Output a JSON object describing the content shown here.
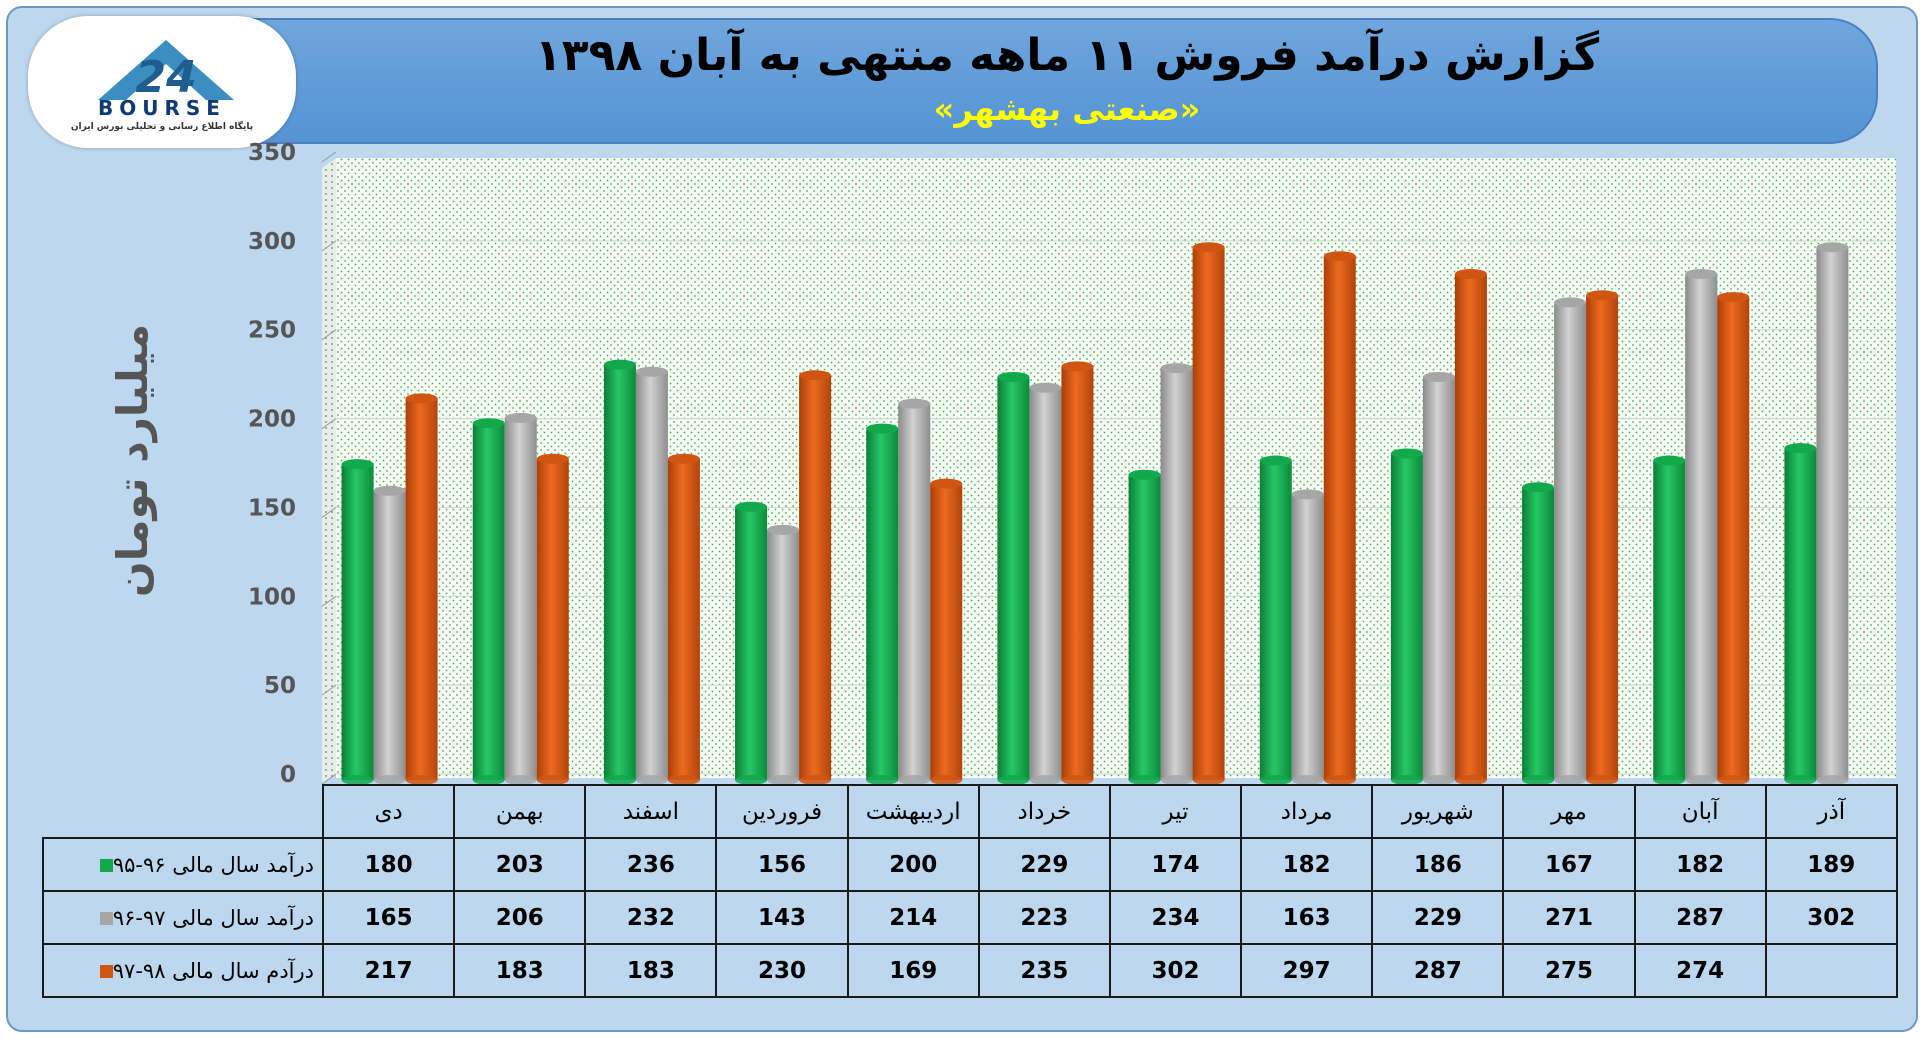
{
  "header": {
    "title": "گزارش درآمد فروش ۱۱ ماهه منتهی به آبان ۱۳۹۸",
    "subtitle": "«صنعتی بهشهر»"
  },
  "logo": {
    "text": "BOURSE",
    "subtext": "پایگاه اطلاع رسانی و تحلیلی بورس ایران",
    "icon": "24-house-logo"
  },
  "chart_data": {
    "type": "bar",
    "ylabel": "میلیارد تومان",
    "ylim": [
      0,
      350
    ],
    "yticks": [
      0,
      50,
      100,
      150,
      200,
      250,
      300,
      350
    ],
    "categories": [
      "آذر",
      "آبان",
      "مهر",
      "شهریور",
      "مرداد",
      "تیر",
      "خرداد",
      "اردیبهشت",
      "فروردین",
      "اسفند",
      "بهمن",
      "دی"
    ],
    "series": [
      {
        "name": "درآمد سال مالی ۹۶-۹۵",
        "color": "#12a84c",
        "values": [
          189,
          182,
          167,
          186,
          182,
          174,
          229,
          200,
          156,
          236,
          203,
          180
        ]
      },
      {
        "name": "درآمد سال مالی ۹۷-۹۶",
        "color": "#a6a6a6",
        "values": [
          302,
          287,
          271,
          229,
          163,
          234,
          223,
          214,
          143,
          232,
          206,
          165
        ]
      },
      {
        "name": "درآدم سال مالی ۹۸-۹۷",
        "color": "#d15512",
        "values": [
          null,
          274,
          275,
          287,
          297,
          302,
          235,
          169,
          230,
          183,
          183,
          217
        ]
      }
    ],
    "grid": true,
    "category_order": "right-to-left"
  }
}
